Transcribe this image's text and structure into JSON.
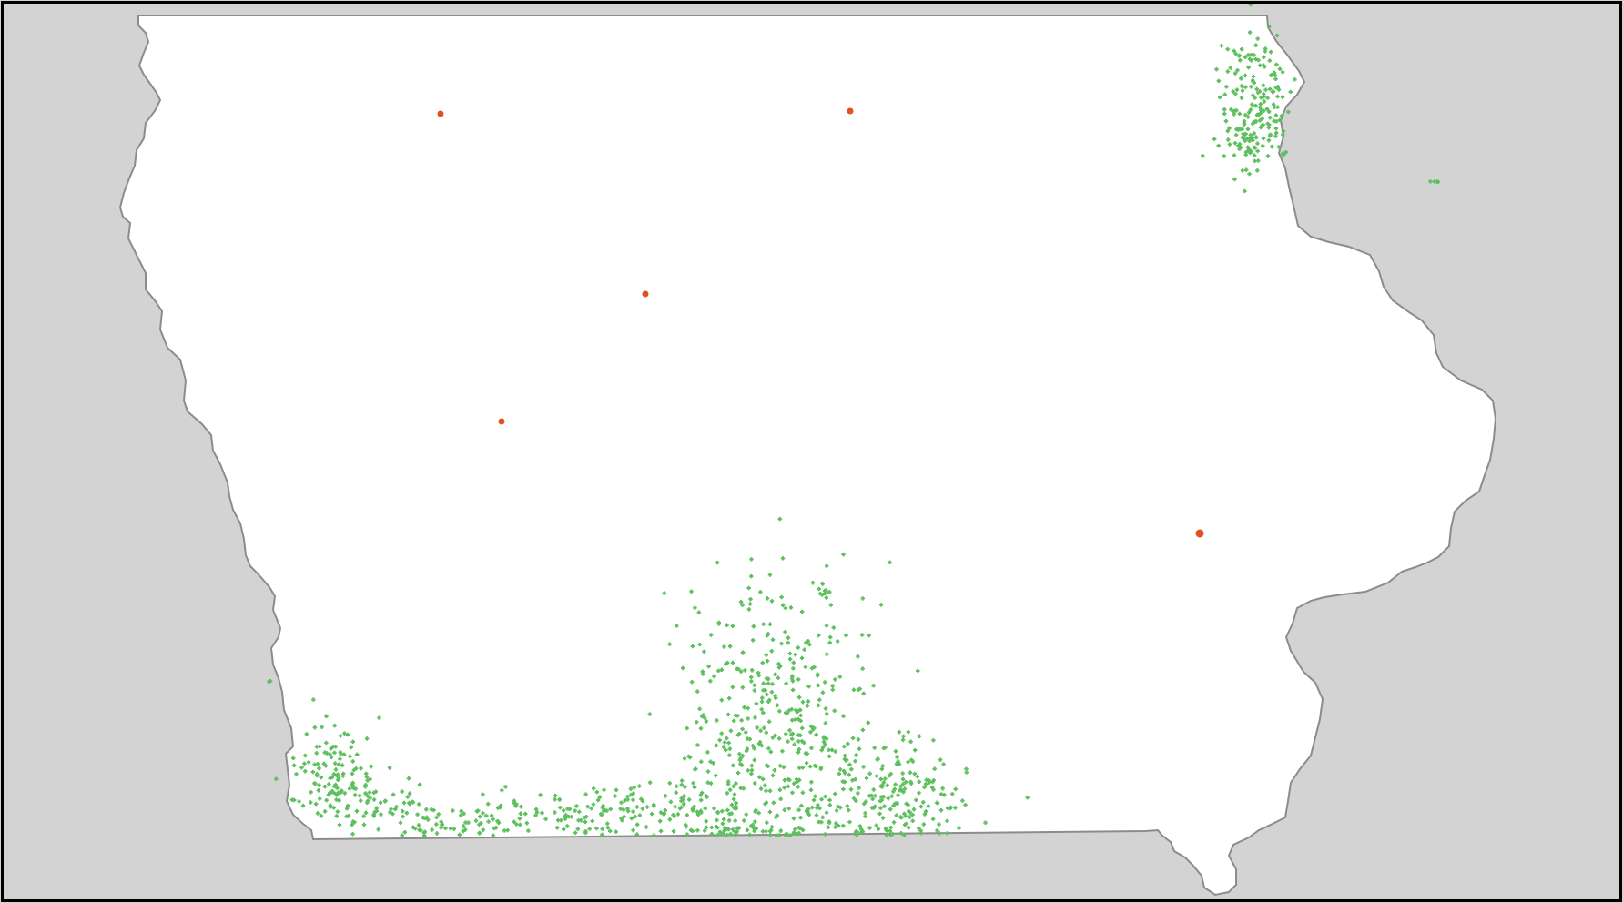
{
  "map": {
    "colors": {
      "background": "#d3d3d3",
      "state_fill": "#ffffff",
      "state_border": "#8c8c8c",
      "frame_border": "#000000",
      "cluster_marker": "#5dbf5d",
      "point_marker": "#e0521f"
    },
    "marker_icons": {
      "cluster": "green-cross-marker",
      "point": "orange-dot-marker"
    }
  }
}
